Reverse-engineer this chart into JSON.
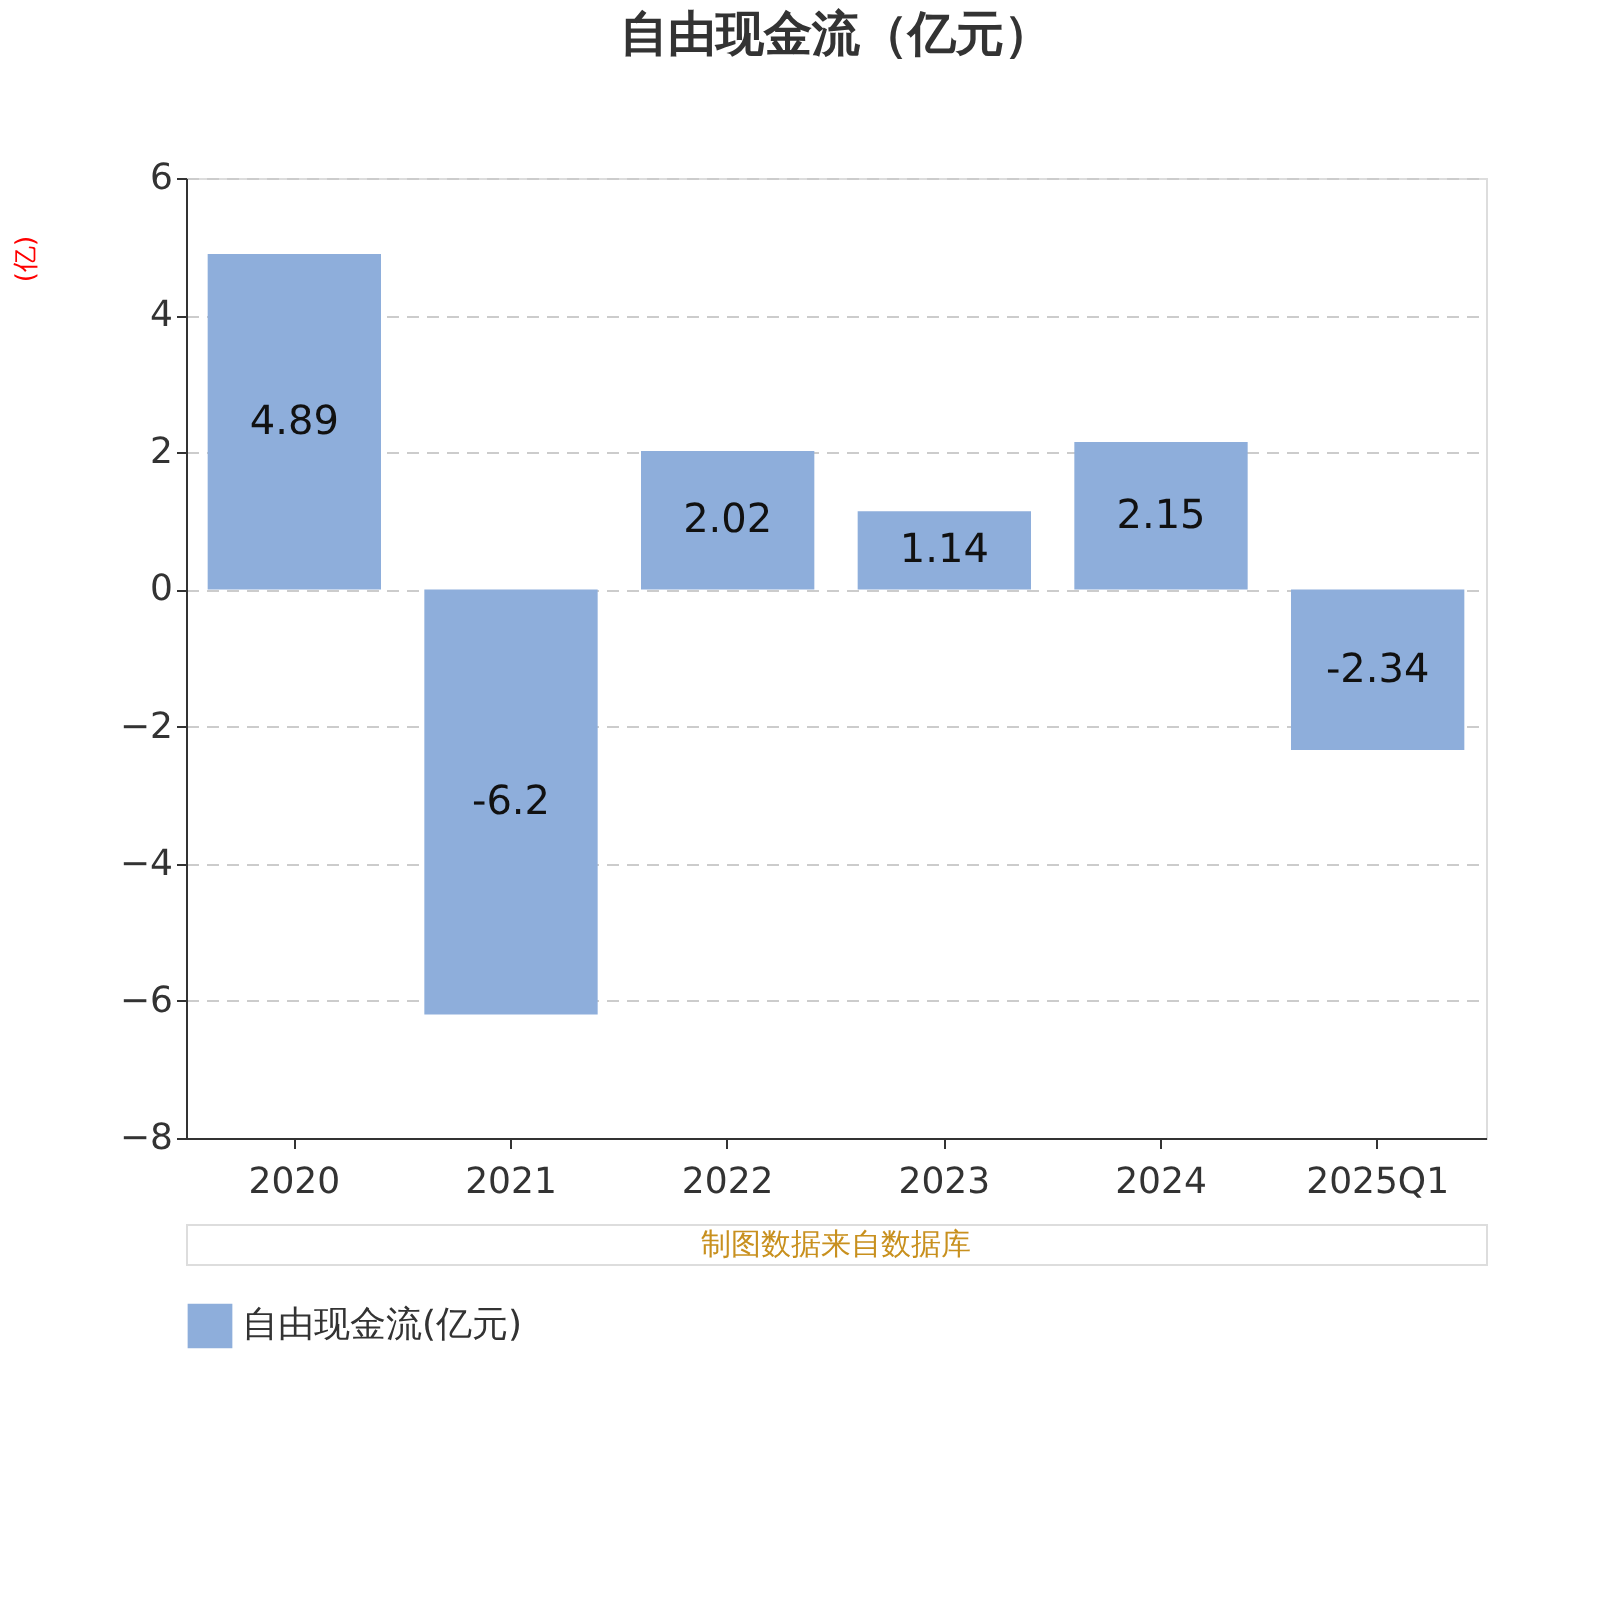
{
  "chart_data": {
    "type": "bar",
    "title": "自由现金流（亿元）",
    "ylabel": "(亿)",
    "categories": [
      "2020",
      "2021",
      "2022",
      "2023",
      "2024",
      "2025Q1"
    ],
    "series": [
      {
        "name": "自由现金流(亿元)",
        "color": "#8eaedb",
        "values": [
          4.89,
          -6.2,
          2.02,
          1.14,
          2.15,
          -2.34
        ]
      }
    ],
    "ylim": [
      -8,
      6
    ],
    "yticks": [
      -8,
      -6,
      -4,
      -2,
      0,
      2,
      4,
      6
    ],
    "grid": "y",
    "legend": "bottom",
    "data_labels": true,
    "annotations": [
      "制图数据来自数据库"
    ]
  }
}
